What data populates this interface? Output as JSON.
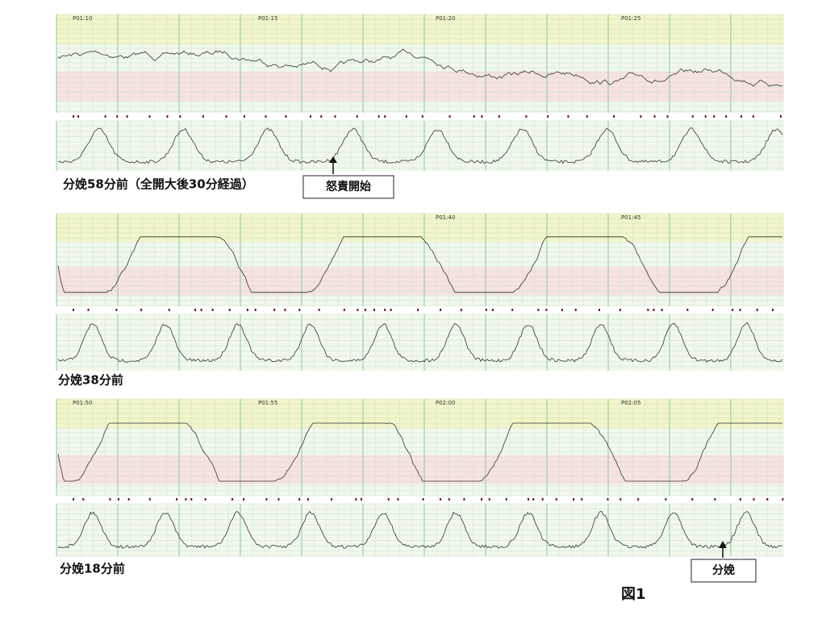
{
  "panels": [
    {
      "caption": "分娩58分前（全開大後30分経過）",
      "timestamps": [
        "P01:10",
        "P01:15",
        "P01:20",
        "P01:25"
      ],
      "annotation": "怒責開始"
    },
    {
      "caption": "分娩38分前",
      "timestamps": [
        "P01:40",
        "P01:45"
      ]
    },
    {
      "caption": "分娩18分前",
      "timestamps": [
        "P01:50",
        "P01:55",
        "P02:00",
        "P02:05"
      ],
      "annotation": "分娩"
    }
  ],
  "figure_label": "図1"
}
